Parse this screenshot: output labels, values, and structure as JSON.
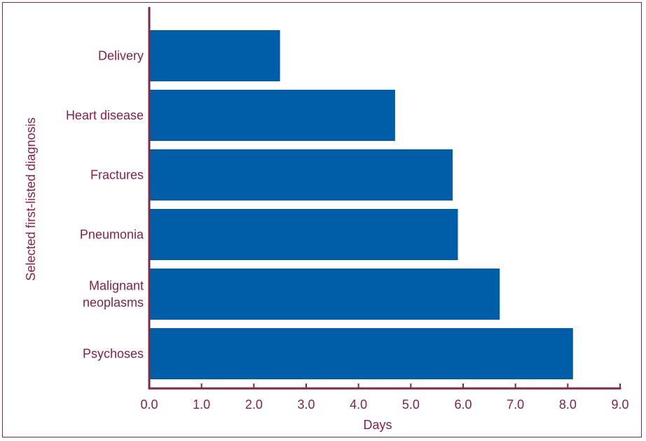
{
  "chart_data": {
    "type": "bar",
    "orientation": "horizontal",
    "categories": [
      "Delivery",
      "Heart disease",
      "Fractures",
      "Pneumonia",
      "Malignant neoplasms",
      "Psychoses"
    ],
    "category_lines": [
      [
        "Delivery"
      ],
      [
        "Heart disease"
      ],
      [
        "Fractures"
      ],
      [
        "Pneumonia"
      ],
      [
        "Malignant",
        "neoplasms"
      ],
      [
        "Psychoses"
      ]
    ],
    "values": [
      2.5,
      4.7,
      5.8,
      5.9,
      6.7,
      8.1
    ],
    "xlabel": "Days",
    "ylabel": "Selected first-listed diagnosis",
    "xlim": [
      0,
      9
    ],
    "xticks": [
      "0.0",
      "1.0",
      "2.0",
      "3.0",
      "4.0",
      "5.0",
      "6.0",
      "7.0",
      "8.0",
      "9.0"
    ],
    "grid": false,
    "colors": {
      "bar": "#005da8",
      "axis": "#7a2a45",
      "text": "#8b1e42"
    }
  }
}
